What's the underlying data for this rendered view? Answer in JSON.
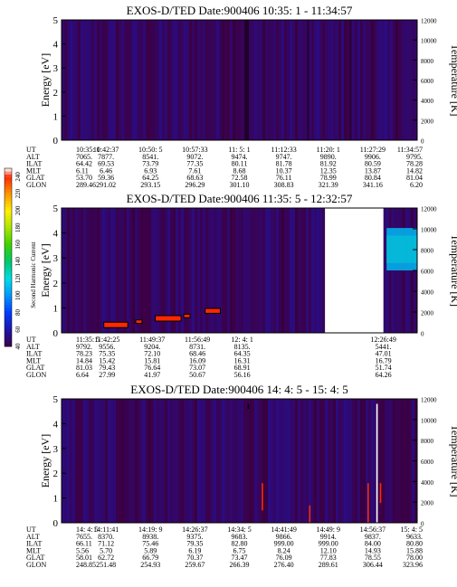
{
  "chart_data": [
    {
      "type": "heatmap",
      "title": "EXOS-D/TED   Date:900406  10:35: 1 - 11:34:57",
      "ylabel": "Energy [eV]",
      "y2label": "Temperature [K]",
      "ylim": [
        0,
        5
      ],
      "y2lim": [
        0,
        12000
      ],
      "yticks": [
        "0",
        "1",
        "2",
        "3",
        "4",
        "5"
      ],
      "y2ticks": [
        "0",
        "2000",
        "4000",
        "6000",
        "8000",
        "10000",
        "12000"
      ],
      "coverage": [
        [
          0,
          1
        ]
      ],
      "background_level": 45,
      "features": [
        {
          "type": "band",
          "x": 0.515,
          "width": 0.012,
          "level": 30
        },
        {
          "type": "band",
          "x": 0.69,
          "width": 0.006,
          "level": 34
        },
        {
          "type": "band",
          "x": 0.81,
          "width": 0.005,
          "level": 34
        }
      ],
      "ephemeris": {
        "labels": [
          "UT",
          "ALT",
          "ILAT",
          "MLT",
          "GLAT",
          "GLON"
        ],
        "columns": [
          [
            "10:35: 1",
            "7065.",
            "64.42",
            "6.11",
            "53.70",
            "289.46"
          ],
          [
            "10:42:37",
            "7877.",
            "69.53",
            "6.46",
            "59.36",
            "291.02"
          ],
          [
            "10:50: 5",
            "8541.",
            "73.79",
            "6.93",
            "64.25",
            "293.15"
          ],
          [
            "10:57:33",
            "9072.",
            "77.35",
            "7.61",
            "68.63",
            "296.29"
          ],
          [
            "11: 5: 1",
            "9474.",
            "80.11",
            "8.68",
            "72.58",
            "301.10"
          ],
          [
            "11:12:33",
            "9747.",
            "81.78",
            "10.37",
            "76.11",
            "308.83"
          ],
          [
            "11:20: 1",
            "9890.",
            "81.92",
            "12.35",
            "78.99",
            "321.39"
          ],
          [
            "11:27:29",
            "9906.",
            "80.59",
            "13.87",
            "80.84",
            "341.16"
          ],
          [
            "11:34:57",
            "9795.",
            "78.28",
            "14.82",
            "81.04",
            "6.20"
          ]
        ]
      }
    },
    {
      "type": "heatmap",
      "title": "EXOS-D/TED   Date:900406  11:35: 5 - 12:32:57",
      "ylabel": "Energy [eV]",
      "y2label": "Temperature [K]",
      "ylim": [
        0,
        5
      ],
      "y2lim": [
        0,
        12000
      ],
      "yticks": [
        "0",
        "1",
        "2",
        "3",
        "4",
        "5"
      ],
      "y2ticks": [
        "0",
        "2000",
        "4000",
        "6000",
        "8000",
        "10000",
        "12000"
      ],
      "coverage": [
        [
          0,
          0.74
        ],
        [
          0.905,
          1
        ]
      ],
      "background_level": 45,
      "features": [
        {
          "type": "blob",
          "x0": 0.914,
          "x1": 1.0,
          "y0": 2.8,
          "y1": 3.9,
          "level": 150
        },
        {
          "type": "blob",
          "x0": 0.914,
          "x1": 1.0,
          "y0": 2.5,
          "y1": 4.2,
          "level": 110
        },
        {
          "type": "segment",
          "x0": 0.12,
          "x1": 0.185,
          "y": 0.32,
          "thickness": 0.18,
          "level": 240
        },
        {
          "type": "segment",
          "x0": 0.21,
          "x1": 0.225,
          "y": 0.45,
          "thickness": 0.1,
          "level": 240
        },
        {
          "type": "segment",
          "x0": 0.265,
          "x1": 0.335,
          "y": 0.58,
          "thickness": 0.18,
          "level": 240
        },
        {
          "type": "segment",
          "x0": 0.345,
          "x1": 0.36,
          "y": 0.68,
          "thickness": 0.1,
          "level": 240
        },
        {
          "type": "segment",
          "x0": 0.405,
          "x1": 0.445,
          "y": 0.88,
          "thickness": 0.16,
          "level": 240
        }
      ],
      "colorbar": {
        "label": "Second Harmonic Current",
        "ticks": [
          "40",
          "60",
          "80",
          "100",
          "120",
          "140",
          "160",
          "180",
          "200",
          "220",
          "240"
        ],
        "range": [
          40,
          250
        ]
      },
      "ephemeris": {
        "labels": [
          "UT",
          "ALT",
          "ILAT",
          "MLT",
          "GLAT",
          "GLON"
        ],
        "columns": [
          [
            "11:35: 5",
            "9792.",
            "78.23",
            "14.84",
            "81.03",
            "6.64"
          ],
          [
            "11:42:25",
            "9556.",
            "75.35",
            "15.42",
            "79.43",
            "27.99"
          ],
          [
            "11:49:37",
            "9204.",
            "72.10",
            "15.81",
            "76.64",
            "41.97"
          ],
          [
            "11:56:49",
            "8731.",
            "68.46",
            "16.09",
            "73.07",
            "50.67"
          ],
          [
            "12: 4: 1",
            "8135.",
            "64.35",
            "16.31",
            "68.91",
            "56.16"
          ],
          [
            "12:26:49",
            "5441.",
            "47.01",
            "16.79",
            "51.74",
            "64.26"
          ]
        ]
      }
    },
    {
      "type": "heatmap",
      "title": "EXOS-D/TED   Date:900406  14: 4: 5 - 15: 4: 5",
      "ylabel": "Energy [eV]",
      "y2label": "Temperature [K]",
      "ylim": [
        0,
        5
      ],
      "y2lim": [
        0,
        12000
      ],
      "yticks": [
        "0",
        "1",
        "2",
        "3",
        "4",
        "5"
      ],
      "y2ticks": [
        "0",
        "2000",
        "4000",
        "6000",
        "8000",
        "10000",
        "12000"
      ],
      "coverage": [
        [
          0,
          1
        ]
      ],
      "background_level": 45,
      "features": [
        {
          "type": "line",
          "x": 0.565,
          "y0": 0.5,
          "y1": 1.6,
          "level": 240
        },
        {
          "type": "line",
          "x": 0.698,
          "y0": 0.0,
          "y1": 0.7,
          "level": 240
        },
        {
          "type": "line",
          "x": 0.862,
          "y0": 0.0,
          "y1": 1.6,
          "level": 240
        },
        {
          "type": "line",
          "x": 0.887,
          "y0": 0.0,
          "y1": 4.8,
          "level": 250
        },
        {
          "type": "line",
          "x": 0.897,
          "y0": 0.8,
          "y1": 1.6,
          "level": 240
        },
        {
          "type": "line",
          "x": 0.525,
          "y0": 4.6,
          "y1": 4.8,
          "level": 20
        }
      ],
      "ephemeris": {
        "labels": [
          "UT",
          "ALT",
          "ILAT",
          "MLT",
          "GLAT",
          "GLON"
        ],
        "columns": [
          [
            "14: 4: 5",
            "7655.",
            "66.11",
            "5.56",
            "58.01",
            "248.85"
          ],
          [
            "14:11:41",
            "8370.",
            "71.12",
            "5.70",
            "62.72",
            "251.48"
          ],
          [
            "14:19: 9",
            "8938.",
            "75.46",
            "5.89",
            "66.79",
            "254.93"
          ],
          [
            "14:26:37",
            "9375.",
            "79.35",
            "6.19",
            "70.37",
            "259.67"
          ],
          [
            "14:34: 5",
            "9683.",
            "82.80",
            "6.75",
            "73.47",
            "266.39"
          ],
          [
            "14:41:49",
            "9866.",
            "999.00",
            "8.24",
            "76.09",
            "276.40"
          ],
          [
            "14:49: 9",
            "9914.",
            "999.00",
            "12.10",
            "77.83",
            "289.61"
          ],
          [
            "14:56:37",
            "9837.",
            "84.00",
            "14.93",
            "78.55",
            "306.44"
          ],
          [
            "15: 4: 5",
            "9633.",
            "80.80",
            "15.88",
            "78.00",
            "323.96"
          ]
        ]
      }
    }
  ]
}
